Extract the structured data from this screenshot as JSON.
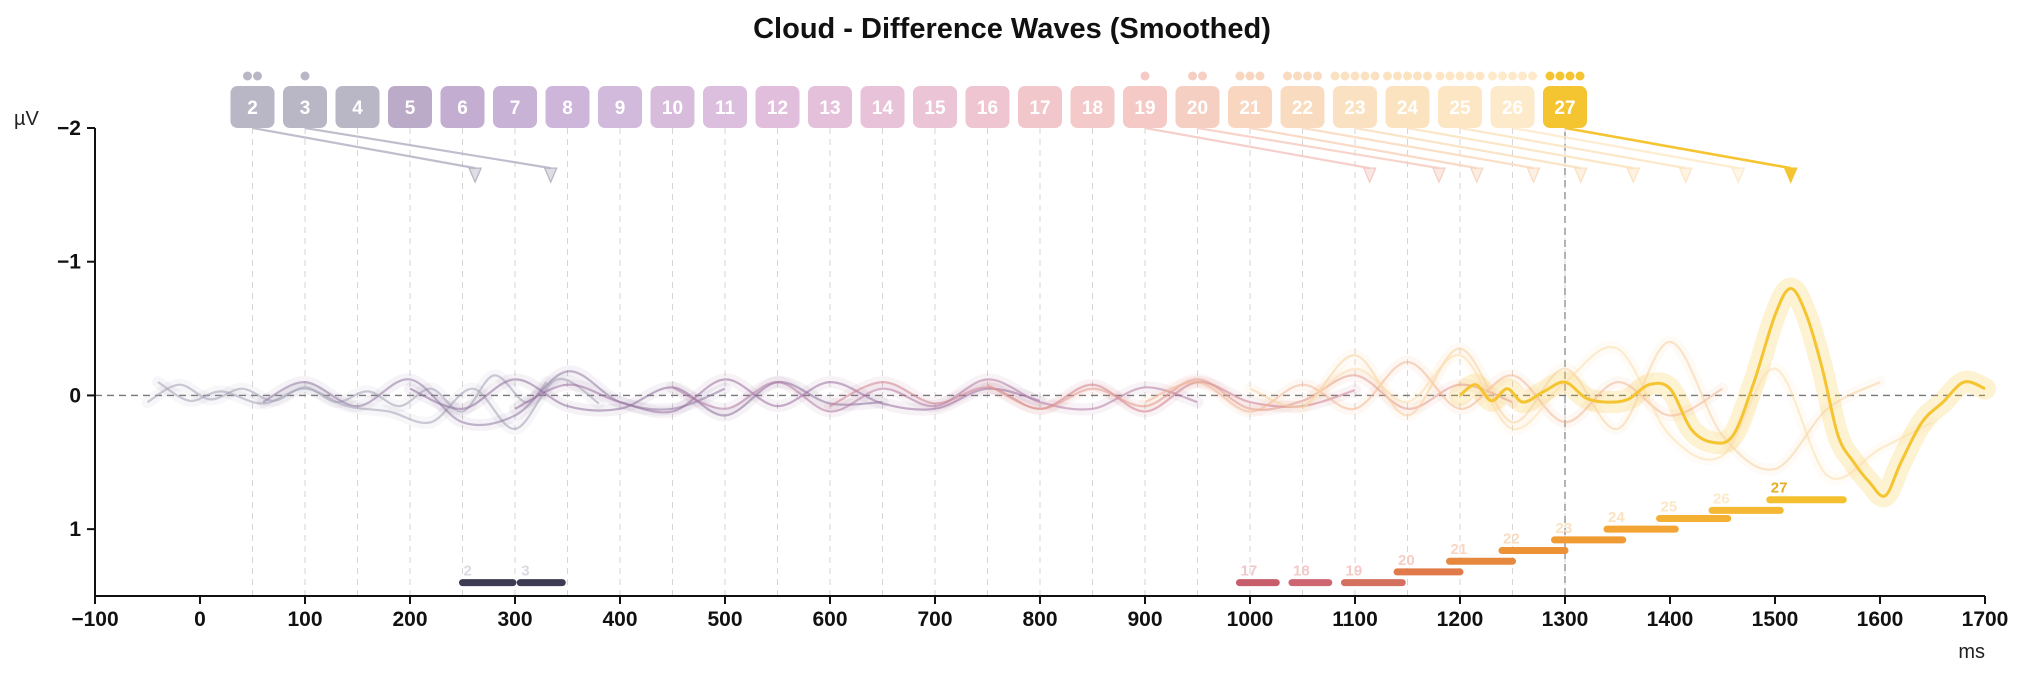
{
  "chart_data": {
    "type": "line",
    "title": "Cloud - Difference Waves (Smoothed)",
    "xlabel": "ms",
    "ylabel": "µV",
    "xlim": [
      -100,
      1700
    ],
    "ylim": [
      -2,
      1.5
    ],
    "y_inverted": true,
    "x_ticks": [
      -100,
      0,
      100,
      200,
      300,
      400,
      500,
      600,
      700,
      800,
      900,
      1000,
      1100,
      1200,
      1300,
      1400,
      1500,
      1600,
      1700
    ],
    "x_tick_labels": [
      "−100",
      "0",
      "100",
      "200",
      "300",
      "400",
      "500",
      "600",
      "700",
      "800",
      "900",
      "1000",
      "1100",
      "1200",
      "1300",
      "1400",
      "1500",
      "1600",
      "1700"
    ],
    "y_ticks": [
      -2,
      -1,
      0,
      1
    ],
    "y_tick_labels": [
      "−2",
      "−1",
      "0",
      "1"
    ],
    "zero_line": true,
    "vertical_marker_ms": 1300,
    "highlighted_condition": "27",
    "conditions": [
      {
        "label": "2",
        "onset_ms": 50,
        "dots": 2,
        "color": "#b9b6c6",
        "peak_ms": 262,
        "peak_uv": -1.7
      },
      {
        "label": "3",
        "onset_ms": 100,
        "dots": 1,
        "color": "#b9b6c6",
        "peak_ms": 334,
        "peak_uv": -1.7
      },
      {
        "label": "4",
        "onset_ms": 150,
        "dots": 0,
        "color": "#b9b6c6"
      },
      {
        "label": "5",
        "onset_ms": 200,
        "dots": 0,
        "color": "#bcabc8"
      },
      {
        "label": "6",
        "onset_ms": 250,
        "dots": 0,
        "color": "#c3aed1"
      },
      {
        "label": "7",
        "onset_ms": 300,
        "dots": 0,
        "color": "#c8b2d6"
      },
      {
        "label": "8",
        "onset_ms": 350,
        "dots": 0,
        "color": "#cdb6d9"
      },
      {
        "label": "9",
        "onset_ms": 400,
        "dots": 0,
        "color": "#d2badc"
      },
      {
        "label": "10",
        "onset_ms": 450,
        "dots": 0,
        "color": "#d8bcdc"
      },
      {
        "label": "11",
        "onset_ms": 500,
        "dots": 0,
        "color": "#dcbede"
      },
      {
        "label": "12",
        "onset_ms": 550,
        "dots": 0,
        "color": "#e1bedc"
      },
      {
        "label": "13",
        "onset_ms": 600,
        "dots": 0,
        "color": "#e5c0da"
      },
      {
        "label": "14",
        "onset_ms": 650,
        "dots": 0,
        "color": "#e8c2d8"
      },
      {
        "label": "15",
        "onset_ms": 700,
        "dots": 0,
        "color": "#ebc4d5"
      },
      {
        "label": "16",
        "onset_ms": 750,
        "dots": 0,
        "color": "#eec5d1"
      },
      {
        "label": "17",
        "onset_ms": 800,
        "dots": 0,
        "color": "#f1c7cc"
      },
      {
        "label": "18",
        "onset_ms": 850,
        "dots": 0,
        "color": "#f3c9c9"
      },
      {
        "label": "19",
        "onset_ms": 900,
        "dots": 1,
        "color": "#f5cac6",
        "peak_ms": 1114,
        "peak_uv": -1.7
      },
      {
        "label": "20",
        "onset_ms": 950,
        "dots": 2,
        "color": "#f6cfc3",
        "peak_ms": 1180,
        "peak_uv": -1.7
      },
      {
        "label": "21",
        "onset_ms": 1000,
        "dots": 3,
        "color": "#f8d6c0",
        "peak_ms": 1216,
        "peak_uv": -1.7
      },
      {
        "label": "22",
        "onset_ms": 1050,
        "dots": 4,
        "color": "#f9dcc0",
        "peak_ms": 1270,
        "peak_uv": -1.7
      },
      {
        "label": "23",
        "onset_ms": 1100,
        "dots": 5,
        "color": "#fae1c1",
        "peak_ms": 1315,
        "peak_uv": -1.7
      },
      {
        "label": "24",
        "onset_ms": 1150,
        "dots": 5,
        "color": "#fbe3bf",
        "peak_ms": 1365,
        "peak_uv": -1.7
      },
      {
        "label": "25",
        "onset_ms": 1200,
        "dots": 5,
        "color": "#fce6c3",
        "peak_ms": 1415,
        "peak_uv": -1.7
      },
      {
        "label": "26",
        "onset_ms": 1250,
        "dots": 5,
        "color": "#fdeacb",
        "peak_ms": 1465,
        "peak_uv": -1.7
      },
      {
        "label": "27",
        "onset_ms": 1300,
        "dots": 4,
        "color": "#f5c431",
        "peak_ms": 1515,
        "peak_uv": -1.7
      }
    ],
    "series": [
      {
        "name": "2",
        "color": "#a3a0b4",
        "x": [
          -50,
          -20,
          10,
          40,
          70,
          100,
          130,
          160,
          190,
          220,
          250,
          280,
          310,
          330
        ],
        "y": [
          0.05,
          -0.08,
          0.03,
          -0.05,
          0.04,
          -0.06,
          0.05,
          -0.03,
          0.08,
          -0.05,
          0.12,
          -0.15,
          0.05,
          -0.1
        ]
      },
      {
        "name": "3",
        "color": "#a3a0b4",
        "x": [
          -40,
          -10,
          20,
          60,
          100,
          140,
          180,
          220,
          260,
          300,
          340,
          380
        ],
        "y": [
          -0.1,
          0.04,
          -0.03,
          0.06,
          -0.05,
          0.08,
          0.12,
          0.2,
          -0.05,
          0.25,
          -0.12,
          0.06
        ]
      },
      {
        "name": "5",
        "color": "#8f7aa3",
        "x": [
          60,
          100,
          150,
          200,
          250,
          300,
          350,
          400,
          450,
          500
        ],
        "y": [
          0.05,
          -0.1,
          0.08,
          -0.12,
          0.2,
          0.15,
          -0.18,
          0.05,
          0.1,
          -0.05
        ]
      },
      {
        "name": "8",
        "color": "#8c6f9d",
        "x": [
          200,
          250,
          300,
          350,
          400,
          450,
          500,
          550,
          600,
          650
        ],
        "y": [
          -0.05,
          0.1,
          -0.12,
          0.08,
          0.1,
          -0.06,
          0.15,
          -0.1,
          0.06,
          0.05
        ]
      },
      {
        "name": "11",
        "color": "#9a6fa0",
        "x": [
          300,
          350,
          400,
          450,
          500,
          550,
          600,
          650,
          700,
          750,
          800
        ],
        "y": [
          0.1,
          -0.08,
          0.05,
          0.12,
          -0.12,
          0.08,
          -0.1,
          0.06,
          0.1,
          -0.05,
          0.04
        ]
      },
      {
        "name": "14",
        "color": "#b47aa4",
        "x": [
          450,
          500,
          550,
          600,
          650,
          700,
          750,
          800,
          850,
          900,
          950
        ],
        "y": [
          -0.06,
          0.1,
          -0.1,
          0.12,
          -0.05,
          0.08,
          -0.12,
          0.05,
          0.1,
          -0.06,
          0.05
        ]
      },
      {
        "name": "17",
        "color": "#cd7f8f",
        "x": [
          600,
          650,
          700,
          750,
          800,
          850,
          900,
          950,
          1000,
          1050,
          1100
        ],
        "y": [
          0.08,
          -0.1,
          0.06,
          -0.06,
          0.1,
          -0.08,
          0.12,
          -0.1,
          0.05,
          0.08,
          -0.04
        ]
      },
      {
        "name": "20",
        "color": "#e49a8c",
        "x": [
          750,
          800,
          850,
          900,
          950,
          1000,
          1050,
          1100,
          1150,
          1200,
          1250
        ],
        "y": [
          -0.08,
          0.1,
          -0.05,
          0.08,
          -0.12,
          0.1,
          0.04,
          -0.15,
          0.1,
          -0.08,
          0.05
        ]
      },
      {
        "name": "23",
        "color": "#f2b690",
        "x": [
          900,
          950,
          1000,
          1050,
          1100,
          1150,
          1200,
          1250,
          1300,
          1350,
          1400,
          1450
        ],
        "y": [
          0.05,
          -0.1,
          0.12,
          -0.08,
          0.1,
          -0.25,
          0.1,
          -0.15,
          0.2,
          -0.1,
          0.15,
          -0.05
        ]
      },
      {
        "name": "25",
        "color": "#f8cf9e",
        "x": [
          1000,
          1050,
          1100,
          1150,
          1200,
          1250,
          1300,
          1350,
          1400,
          1450,
          1500,
          1550,
          1600
        ],
        "y": [
          -0.05,
          0.08,
          -0.3,
          0.15,
          -0.35,
          0.2,
          -0.2,
          0.25,
          -0.4,
          0.3,
          0.55,
          0.1,
          -0.1
        ]
      },
      {
        "name": "26",
        "color": "#fbdcab",
        "x": [
          1050,
          1100,
          1150,
          1200,
          1250,
          1300,
          1350,
          1400,
          1450,
          1500,
          1550,
          1600,
          1650
        ],
        "y": [
          0.1,
          -0.2,
          0.05,
          -0.3,
          0.25,
          -0.1,
          -0.35,
          0.3,
          0.45,
          -0.2,
          0.6,
          0.4,
          0.2
        ]
      },
      {
        "name": "27",
        "color": "#f5c431",
        "highlight": true,
        "x": [
          1200,
          1215,
          1230,
          1245,
          1260,
          1280,
          1300,
          1320,
          1340,
          1360,
          1380,
          1400,
          1420,
          1440,
          1460,
          1480,
          1500,
          1515,
          1530,
          1545,
          1560,
          1575,
          1590,
          1605,
          1620,
          1640,
          1660,
          1680,
          1700
        ],
        "y": [
          0.0,
          -0.08,
          0.04,
          -0.05,
          0.05,
          -0.03,
          -0.1,
          0.02,
          0.05,
          0.03,
          -0.08,
          -0.05,
          0.25,
          0.35,
          0.3,
          -0.1,
          -0.6,
          -0.8,
          -0.6,
          -0.2,
          0.3,
          0.5,
          0.65,
          0.75,
          0.5,
          0.2,
          0.05,
          -0.1,
          -0.05
        ]
      }
    ],
    "significance_bars": [
      {
        "label": "2",
        "start_ms": 250,
        "end_ms": 298,
        "y_uv": 1.4,
        "color": "#3e3b55",
        "label_color": "#dcd9e2"
      },
      {
        "label": "3",
        "start_ms": 305,
        "end_ms": 345,
        "y_uv": 1.4,
        "color": "#3e3b55",
        "label_color": "#dcd9e2"
      },
      {
        "label": "17",
        "start_ms": 990,
        "end_ms": 1025,
        "y_uv": 1.4,
        "color": "#c85d6b",
        "label_color": "#f2c7cc"
      },
      {
        "label": "18",
        "start_ms": 1040,
        "end_ms": 1075,
        "y_uv": 1.4,
        "color": "#cd6670",
        "label_color": "#f3c9c9"
      },
      {
        "label": "19",
        "start_ms": 1090,
        "end_ms": 1145,
        "y_uv": 1.4,
        "color": "#d3705f",
        "label_color": "#f5cac6"
      },
      {
        "label": "20",
        "start_ms": 1140,
        "end_ms": 1200,
        "y_uv": 1.32,
        "color": "#e07a4b",
        "label_color": "#f6cfc3"
      },
      {
        "label": "21",
        "start_ms": 1190,
        "end_ms": 1250,
        "y_uv": 1.24,
        "color": "#e7883f",
        "label_color": "#f8d6c0"
      },
      {
        "label": "22",
        "start_ms": 1240,
        "end_ms": 1300,
        "y_uv": 1.16,
        "color": "#ec9136",
        "label_color": "#f9dcc0"
      },
      {
        "label": "23",
        "start_ms": 1290,
        "end_ms": 1355,
        "y_uv": 1.08,
        "color": "#ef9a33",
        "label_color": "#fae1c1"
      },
      {
        "label": "24",
        "start_ms": 1340,
        "end_ms": 1405,
        "y_uv": 1.0,
        "color": "#f2a534",
        "label_color": "#fbe3bf"
      },
      {
        "label": "25",
        "start_ms": 1390,
        "end_ms": 1455,
        "y_uv": 0.92,
        "color": "#f4b033",
        "label_color": "#fce6c3"
      },
      {
        "label": "26",
        "start_ms": 1440,
        "end_ms": 1505,
        "y_uv": 0.86,
        "color": "#f5b833",
        "label_color": "#fdeacb"
      },
      {
        "label": "27",
        "start_ms": 1495,
        "end_ms": 1565,
        "y_uv": 0.78,
        "color": "#f5c030",
        "label_color": "#e5ad1f"
      }
    ]
  }
}
